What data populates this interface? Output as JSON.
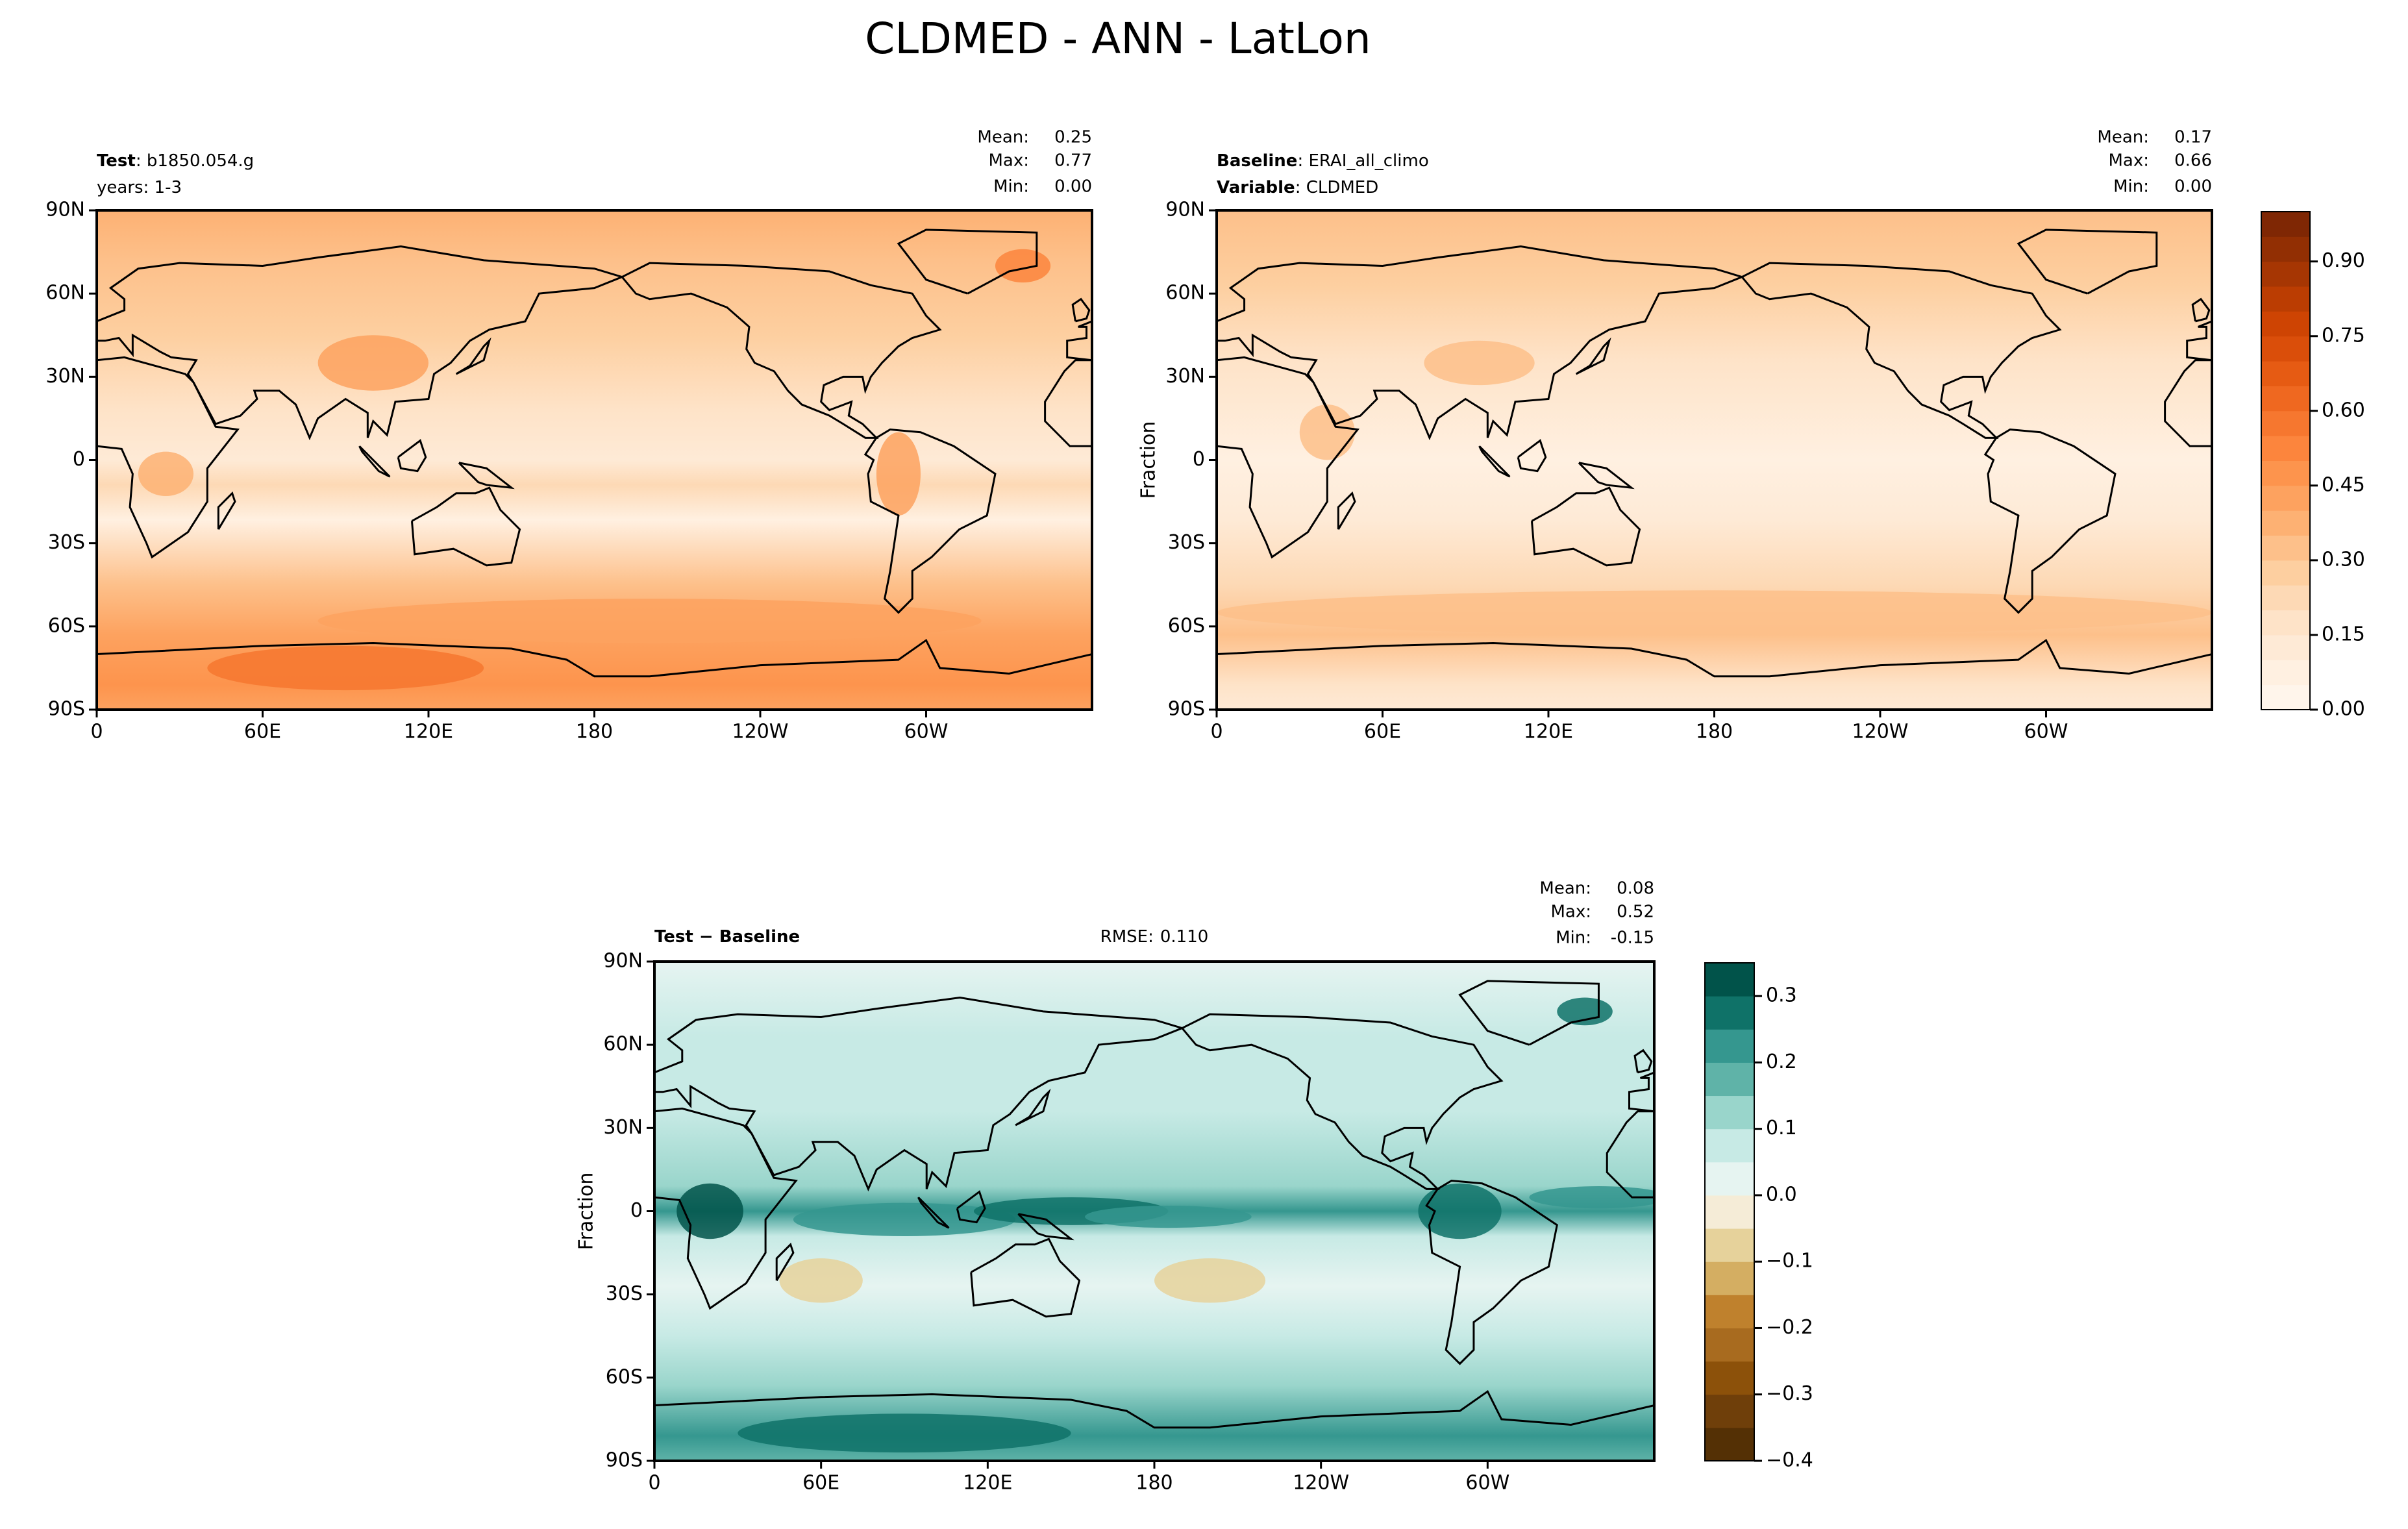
{
  "title": "CLDMED - ANN - LatLon",
  "chart_data": [
    {
      "type": "contour_map",
      "header_lines": [
        {
          "bold": "Test",
          "text": ": b1850.054.g"
        },
        {
          "text": "years: 1-3"
        }
      ],
      "stats": [
        {
          "name": "Mean:",
          "value": 0.25
        },
        {
          "name": "Max:",
          "value": 0.77
        },
        {
          "name": "Min:",
          "value": 0,
          "label": "0.00"
        }
      ],
      "xlim": [
        0,
        360
      ],
      "xticks": [
        0,
        {
          "value": 60,
          "label": "60E"
        },
        {
          "value": 120,
          "label": "120E"
        },
        180,
        {
          "value": 240,
          "label": "120W"
        },
        {
          "value": 300,
          "label": "60W"
        }
      ],
      "ylim": [
        -90,
        90
      ],
      "yticks": [
        {
          "value": -90,
          "label": "90S"
        },
        {
          "value": -60,
          "label": "60S"
        },
        {
          "value": -30,
          "label": "30S"
        },
        0,
        {
          "value": 30,
          "label": "30N"
        },
        {
          "value": 60,
          "label": "60N"
        },
        {
          "value": 90,
          "label": "90N"
        }
      ]
    },
    {
      "type": "contour_map",
      "header_lines": [
        {
          "bold": "Baseline",
          "text": ": ERAI_all_climo"
        },
        {
          "bold": "Variable",
          "text": ": CLDMED"
        }
      ],
      "stats": [
        {
          "name": "Mean:",
          "value": 0.17
        },
        {
          "name": "Max:",
          "value": 0.66
        },
        {
          "name": "Min:",
          "value": 0,
          "label": "0.00"
        }
      ],
      "ylabel": "Fraction",
      "xlim": [
        0,
        360
      ],
      "xticks": [
        0,
        {
          "value": 60,
          "label": "60E"
        },
        {
          "value": 120,
          "label": "120E"
        },
        180,
        {
          "value": 240,
          "label": "120W"
        },
        {
          "value": 300,
          "label": "60W"
        }
      ],
      "ylim": [
        -90,
        90
      ],
      "yticks": [
        {
          "value": -90,
          "label": "90S"
        },
        {
          "value": -60,
          "label": "60S"
        },
        {
          "value": -30,
          "label": "30S"
        },
        0,
        {
          "value": 30,
          "label": "30N"
        },
        {
          "value": 60,
          "label": "60N"
        },
        {
          "value": 90,
          "label": "90N"
        }
      ],
      "colorbar": {
        "levels": [
          0,
          0.05,
          0.1,
          0.15,
          0.2,
          0.25,
          0.3,
          0.35,
          0.4,
          0.45,
          0.5,
          0.55,
          0.6,
          0.65,
          0.7,
          0.75,
          0.8,
          0.85,
          0.9,
          0.95,
          1.0
        ],
        "colors": [
          "#fff5eb",
          "#fff0e1",
          "#feead6",
          "#fee3c8",
          "#fdd9b5",
          "#fdcfa0",
          "#fdc08a",
          "#fdb173",
          "#fda25f",
          "#fd944d",
          "#fc853d",
          "#f6772f",
          "#ef6820",
          "#e65b13",
          "#da4e0a",
          "#ce4403",
          "#bb3d02",
          "#a63603",
          "#922f03",
          "#7f2704"
        ],
        "ylim": [
          0,
          1.0
        ],
        "yticks": [
          {
            "value": 0,
            "label": "0.00"
          },
          0.15,
          {
            "value": 0.3,
            "label": "0.30"
          },
          0.45,
          {
            "value": 0.6,
            "label": "0.60"
          },
          0.75,
          {
            "value": 0.9,
            "label": "0.90"
          }
        ]
      }
    },
    {
      "type": "contour_map",
      "header_lines": [
        {
          "bold": "Test − Baseline"
        }
      ],
      "center_text": {
        "name": "RMSE:",
        "value": 0.11,
        "label": "0.110"
      },
      "stats": [
        {
          "name": "Mean:",
          "value": 0.08
        },
        {
          "name": "Max:",
          "value": 0.52
        },
        {
          "name": "Min:",
          "value": -0.15
        }
      ],
      "ylabel": "Fraction",
      "xlim": [
        0,
        360
      ],
      "xticks": [
        0,
        {
          "value": 60,
          "label": "60E"
        },
        {
          "value": 120,
          "label": "120E"
        },
        180,
        {
          "value": 240,
          "label": "120W"
        },
        {
          "value": 300,
          "label": "60W"
        }
      ],
      "ylim": [
        -90,
        90
      ],
      "yticks": [
        {
          "value": -90,
          "label": "90S"
        },
        {
          "value": -60,
          "label": "60S"
        },
        {
          "value": -30,
          "label": "30S"
        },
        0,
        {
          "value": 30,
          "label": "30N"
        },
        {
          "value": 60,
          "label": "60N"
        },
        {
          "value": 90,
          "label": "90N"
        }
      ],
      "colorbar": {
        "levels": [
          -0.4,
          -0.35,
          -0.3,
          -0.25,
          -0.2,
          -0.15,
          -0.1,
          -0.05,
          0,
          0.05,
          0.1,
          0.15,
          0.2,
          0.25,
          0.3,
          0.35
        ],
        "colors": [
          "#543005",
          "#6f3f0a",
          "#8c510a",
          "#a86b1f",
          "#bf812d",
          "#d4ae62",
          "#e6d29b",
          "#f5ecd7",
          "#e6f4f1",
          "#c7eae5",
          "#99d5cb",
          "#5fb3a8",
          "#35978f",
          "#0f7268",
          "#01534a"
        ],
        "ylim": [
          -0.4,
          0.35
        ],
        "yticks": [
          {
            "value": -0.4,
            "label": "−0.4"
          },
          {
            "value": -0.3,
            "label": "−0.3"
          },
          {
            "value": -0.2,
            "label": "−0.2"
          },
          {
            "value": -0.1,
            "label": "−0.1"
          },
          {
            "value": 0,
            "label": "0.0"
          },
          0.1,
          0.2,
          0.3
        ]
      }
    }
  ]
}
